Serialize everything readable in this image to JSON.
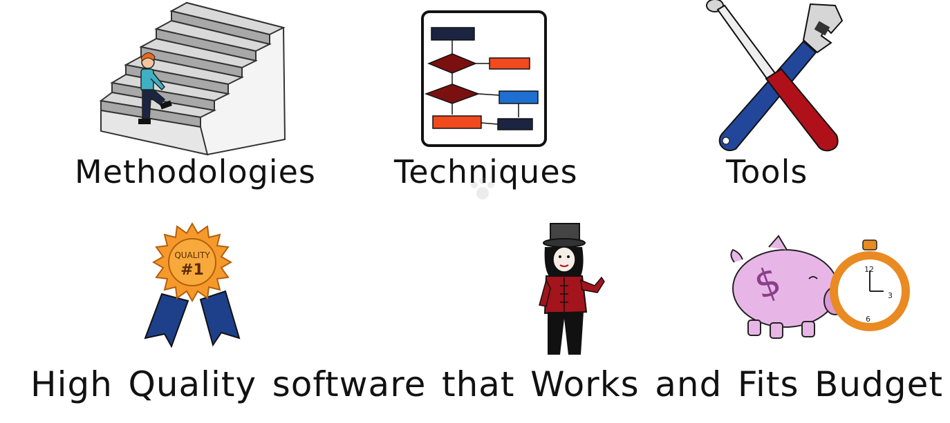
{
  "top_row": {
    "methodologies": "Methodologies",
    "techniques": "Techniques",
    "tools": "Tools"
  },
  "badge_text": {
    "line1": "QUALITY",
    "line2": "#1"
  },
  "clock_numbers": {
    "twelve": "12",
    "three": "3",
    "six": "6"
  },
  "tagline": {
    "w1": "High",
    "w2": "Quality",
    "w3": "software",
    "w4": "that",
    "w5": "Works",
    "w6": "and",
    "w7": "Fits",
    "w8": "Budget"
  },
  "colors": {
    "navy": "#1b2440",
    "dark_red": "#7a1010",
    "orange_red": "#f04a1e",
    "blue": "#1e6fd0",
    "tool_blue": "#22479a",
    "tool_red": "#b0101a",
    "badge_orange": "#f59a2a",
    "ribbon_blue": "#1e3f8a",
    "piggy_pink": "#e8b6e6",
    "clock_orange": "#e98a22"
  }
}
